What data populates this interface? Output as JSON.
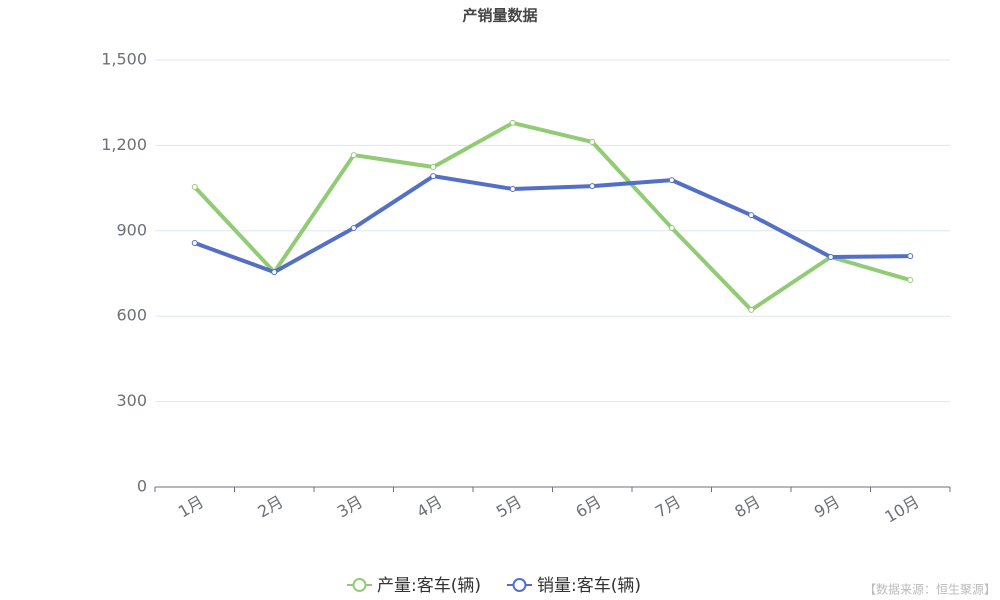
{
  "chart_data": {
    "type": "line",
    "title": "产销量数据",
    "categories": [
      "1月",
      "2月",
      "3月",
      "4月",
      "5月",
      "6月",
      "7月",
      "8月",
      "9月",
      "10月"
    ],
    "series": [
      {
        "name": "产量:客车(辆)",
        "color": "#91cc75",
        "values": [
          1054,
          755,
          1166,
          1124,
          1279,
          1212,
          910,
          622,
          808,
          727
        ]
      },
      {
        "name": "销量:客车(辆)",
        "color": "#5470c6",
        "values": [
          857,
          755,
          910,
          1092,
          1047,
          1057,
          1078,
          955,
          808,
          811
        ]
      }
    ],
    "ylim": [
      0,
      1500
    ],
    "yticks": [
      0,
      300,
      600,
      900,
      {
        "value": 1200,
        "label": "1,200"
      },
      {
        "value": 1500,
        "label": "1,500"
      }
    ],
    "grid": true,
    "legend": "bottom",
    "source": "【数据来源：恒生聚源】"
  }
}
